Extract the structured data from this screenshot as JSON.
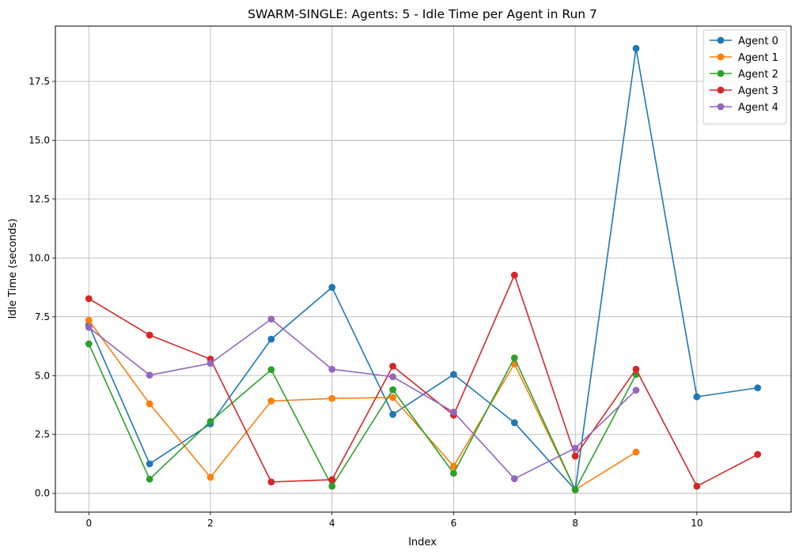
{
  "chart_data": {
    "type": "line",
    "title": "SWARM-SINGLE: Agents: 5 - Idle Time per Agent in Run 7",
    "xlabel": "Index",
    "ylabel": "Idle Time (seconds)",
    "xlim": [
      -0.55,
      11.55
    ],
    "ylim": [
      -0.8,
      19.85
    ],
    "xticks": [
      0,
      2,
      4,
      6,
      8,
      10
    ],
    "xtick_labels": [
      "0",
      "2",
      "4",
      "6",
      "8",
      "10"
    ],
    "yticks": [
      0,
      2.5,
      5,
      7.5,
      10,
      12.5,
      15,
      17.5
    ],
    "ytick_labels": [
      "0.0",
      "2.5",
      "5.0",
      "7.5",
      "10.0",
      "12.5",
      "15.0",
      "17.5"
    ],
    "grid": true,
    "legend_position": "top-right",
    "series": [
      {
        "name": "Agent 0",
        "color": "#1f77b4",
        "x": [
          0,
          1,
          2,
          3,
          4,
          5,
          6,
          7,
          8,
          9,
          10,
          11
        ],
        "values": [
          7.15,
          1.25,
          2.95,
          6.55,
          8.75,
          3.35,
          5.05,
          3.0,
          0.15,
          18.9,
          4.1,
          4.48
        ]
      },
      {
        "name": "Agent 1",
        "color": "#ff7f0e",
        "x": [
          0,
          1,
          2,
          3,
          4,
          5,
          6,
          7,
          8,
          9
        ],
        "values": [
          7.35,
          3.8,
          0.68,
          3.92,
          4.03,
          4.07,
          1.15,
          5.5,
          0.15,
          1.75
        ]
      },
      {
        "name": "Agent 2",
        "color": "#2ca02c",
        "x": [
          0,
          1,
          2,
          3,
          4,
          5,
          6,
          7,
          8,
          9
        ],
        "values": [
          6.35,
          0.6,
          3.05,
          5.25,
          0.3,
          4.4,
          0.85,
          5.75,
          0.15,
          5.05
        ]
      },
      {
        "name": "Agent 3",
        "color": "#d62728",
        "x": [
          0,
          1,
          2,
          3,
          4,
          5,
          6,
          7,
          8,
          9,
          10,
          11
        ],
        "values": [
          8.27,
          6.72,
          5.7,
          0.48,
          0.58,
          5.4,
          3.32,
          9.27,
          1.58,
          5.27,
          0.3,
          1.65
        ]
      },
      {
        "name": "Agent 4",
        "color": "#9467bd",
        "x": [
          0,
          1,
          2,
          3,
          4,
          5,
          6,
          7,
          8,
          9
        ],
        "values": [
          7.05,
          5.02,
          5.52,
          7.4,
          5.27,
          4.95,
          3.45,
          0.62,
          1.92,
          4.38
        ]
      }
    ]
  }
}
